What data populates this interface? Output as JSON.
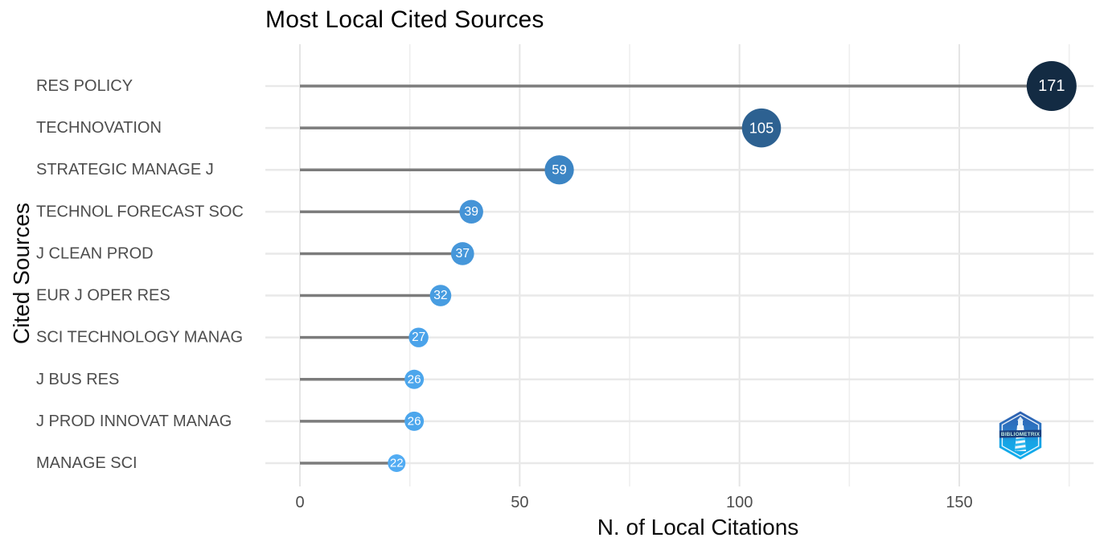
{
  "chart_data": {
    "type": "bar",
    "variant": "horizontal-lollipop",
    "title": "Most Local Cited Sources",
    "xlabel": "N. of Local Citations",
    "ylabel": "Cited Sources",
    "categories": [
      "RES POLICY",
      "TECHNOVATION",
      "STRATEGIC MANAGE J",
      "TECHNOL FORECAST SOC",
      "J CLEAN PROD",
      "EUR J OPER RES",
      "SCI TECHNOLOGY MANAG",
      "J BUS RES",
      "J PROD INNOVAT MANAG",
      "MANAGE SCI"
    ],
    "values": [
      171,
      105,
      59,
      39,
      37,
      32,
      27,
      26,
      26,
      22
    ],
    "point_colors": [
      "#132B43",
      "#2D6191",
      "#3C85C4",
      "#4594D7",
      "#4697DA",
      "#489DE1",
      "#4BA3EA",
      "#4CA6EC",
      "#4CA6EC",
      "#52ACF3"
    ],
    "xlim": [
      0,
      180
    ],
    "x_major_ticks": [
      0,
      50,
      100,
      150
    ],
    "x_minor_ticks": [
      25,
      75,
      125,
      175
    ],
    "grid": true,
    "legend": "none",
    "colors": {
      "stem": "#7c7c7c",
      "grid_major": "#e5e5e5",
      "grid_minor": "#eeeeee",
      "row_grid": "#e9e9e9",
      "axis_text": "#4d4d4d",
      "title_text": "#000000",
      "value_label": "#ffffff",
      "background": "#ffffff"
    },
    "watermark": "BIBLIOMETRIX"
  }
}
